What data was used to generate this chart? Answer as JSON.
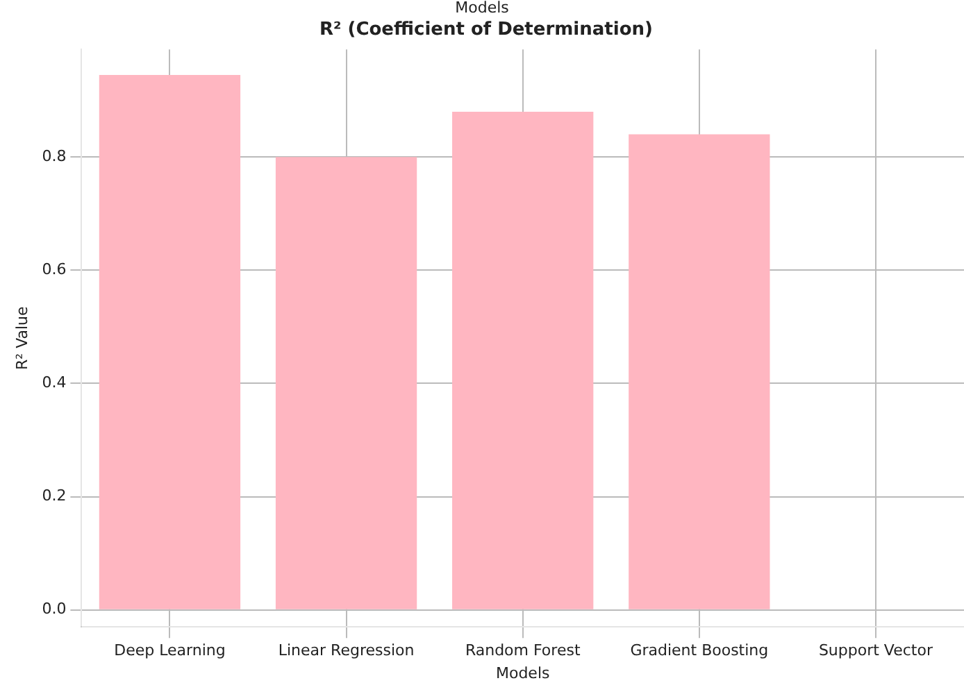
{
  "chart_data": {
    "type": "bar",
    "title": "R² (Coefficient of Determination)",
    "xlabel": "Models",
    "ylabel": "R² Value",
    "annotations": [
      "Models"
    ],
    "categories": [
      "Deep Learning",
      "Linear Regression",
      "Random Forest",
      "Gradient Boosting",
      "Support Vector"
    ],
    "values": [
      0.945,
      0.8,
      0.88,
      0.84,
      0
    ],
    "color": "#ffb6c1",
    "ylim": [
      -0.03,
      0.99
    ],
    "yticks": [
      {
        "value": 0,
        "label": "0.0"
      },
      0.2,
      0.4,
      0.6,
      0.8
    ],
    "grid": true,
    "legend": false
  }
}
